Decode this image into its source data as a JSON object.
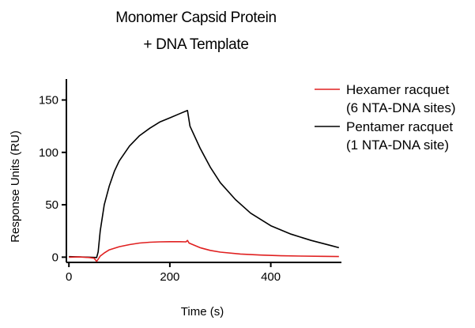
{
  "chart_data": {
    "type": "line",
    "title_lines": [
      "Monomer Capsid Protein",
      "+ DNA Template"
    ],
    "xlabel": "Time (s)",
    "ylabel": "Response Units (RU)",
    "xlim": [
      -5,
      540
    ],
    "ylim": [
      -5,
      170
    ],
    "xticks": [
      0,
      200,
      400
    ],
    "yticks": [
      0,
      50,
      100,
      150
    ],
    "grid": false,
    "legend_position": "top-right",
    "colors": {
      "Pentamer": "#000000",
      "Hexamer": "#e02020"
    },
    "series": [
      {
        "key": "Pentamer",
        "legend_lines": [
          "Pentamer racquet",
          "(1 NTA-DNA site)"
        ],
        "color": "#000000",
        "x": [
          0,
          20,
          40,
          55,
          58,
          62,
          70,
          80,
          90,
          100,
          120,
          140,
          160,
          180,
          200,
          220,
          235,
          240,
          260,
          280,
          300,
          330,
          360,
          400,
          440,
          480,
          520,
          535
        ],
        "y": [
          0.5,
          0.3,
          0,
          -0.3,
          5,
          25,
          50,
          68,
          82,
          92,
          106,
          116,
          123,
          129,
          133,
          137,
          140,
          125,
          104,
          86,
          71,
          55,
          42,
          30,
          22,
          16,
          11,
          9
        ]
      },
      {
        "key": "Hexamer",
        "legend_lines": [
          "Hexamer racquet",
          "(6 NTA-DNA sites)"
        ],
        "color": "#e02020",
        "x": [
          0,
          20,
          40,
          50,
          55,
          58,
          62,
          70,
          80,
          100,
          120,
          140,
          160,
          180,
          200,
          220,
          232,
          235,
          238,
          260,
          280,
          300,
          340,
          380,
          420,
          460,
          500,
          535
        ],
        "y": [
          0,
          0.2,
          -0.3,
          -1,
          -4,
          -2,
          1,
          4,
          7,
          10,
          12,
          13.5,
          14.2,
          14.6,
          14.8,
          14.8,
          14.6,
          16,
          13.5,
          9,
          6.5,
          4.8,
          3,
          2,
          1.3,
          1,
          0.8,
          0.6
        ]
      }
    ]
  }
}
